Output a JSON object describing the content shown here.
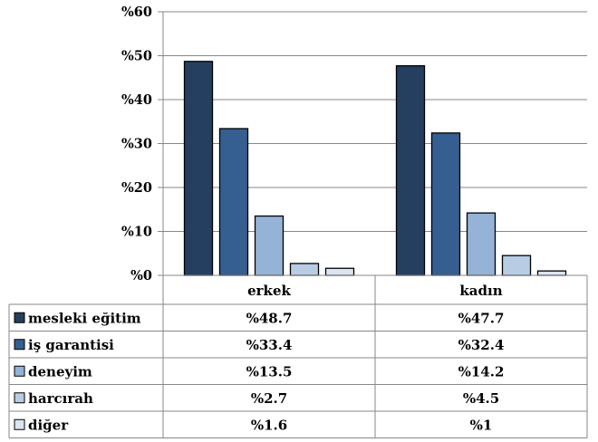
{
  "chart_data": {
    "type": "bar",
    "categories": [
      "erkek",
      "kadın"
    ],
    "series": [
      {
        "name": "mesleki eğitim",
        "values": [
          48.7,
          47.7
        ],
        "display": [
          "%48.7",
          "%47.7"
        ],
        "color": "#243f60"
      },
      {
        "name": "iş garantisi",
        "values": [
          33.4,
          32.4
        ],
        "display": [
          "%33.4",
          "%32.4"
        ],
        "color": "#365f91"
      },
      {
        "name": "deneyim",
        "values": [
          13.5,
          14.2
        ],
        "display": [
          "%13.5",
          "%14.2"
        ],
        "color": "#95b3d7"
      },
      {
        "name": "harcırah",
        "values": [
          2.7,
          4.5
        ],
        "display": [
          "%2.7",
          "%4.5"
        ],
        "color": "#b8cce4"
      },
      {
        "name": "diğer",
        "values": [
          1.6,
          1
        ],
        "display": [
          "%1.6",
          "%1"
        ],
        "color": "#dbe5f1"
      }
    ],
    "ylim": [
      0,
      60
    ],
    "yticks": [
      0,
      10,
      20,
      30,
      40,
      50,
      60
    ],
    "ytick_labels": [
      "%0",
      "%10",
      "%20",
      "%30",
      "%40",
      "%50",
      "%60"
    ],
    "grid": true,
    "legend": "data table below chart",
    "title": "",
    "xlabel": "",
    "ylabel": ""
  }
}
